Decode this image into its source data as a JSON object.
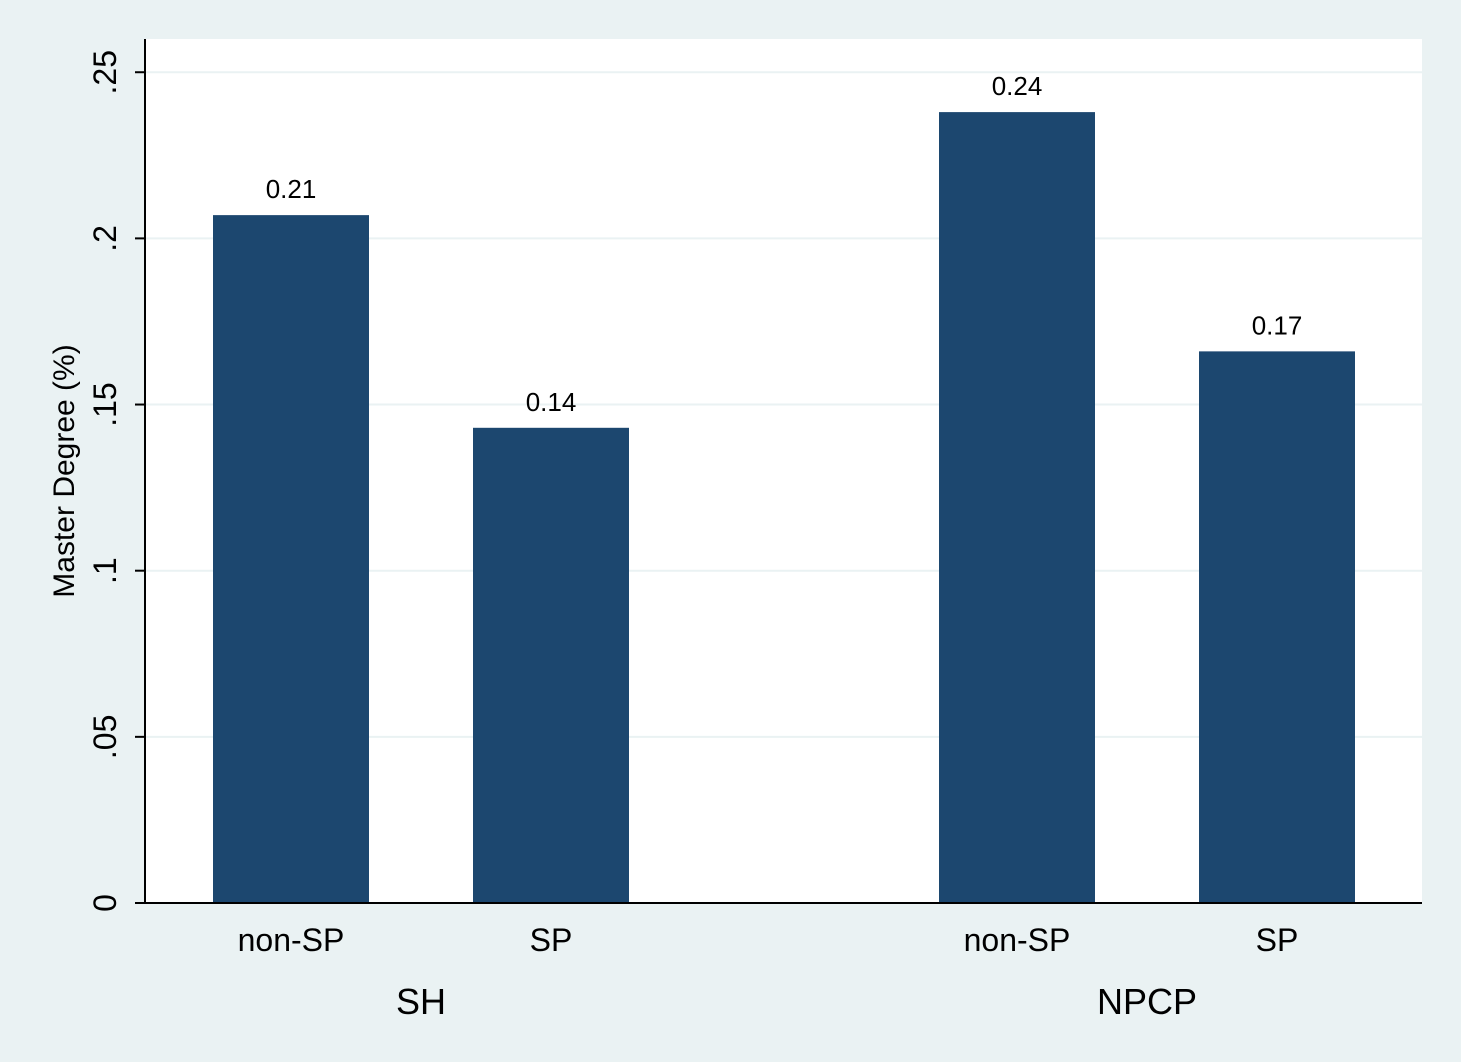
{
  "chart_data": {
    "type": "bar",
    "ylabel": "Master Degree (%)",
    "ylim": [
      0,
      0.26
    ],
    "yticks": [
      {
        "value": 0,
        "label": "0"
      },
      {
        "value": 0.05,
        "label": ".05"
      },
      {
        "value": 0.1,
        "label": ".1"
      },
      {
        "value": 0.15,
        "label": ".15"
      },
      {
        "value": 0.2,
        "label": ".2"
      },
      {
        "value": 0.25,
        "label": ".25"
      }
    ],
    "grid": true,
    "bar_color": "#1c476f",
    "groups": [
      {
        "name": "SH",
        "bars": [
          {
            "category": "non-SP",
            "value": 0.207,
            "label": "0.21"
          },
          {
            "category": "SP",
            "value": 0.143,
            "label": "0.14"
          }
        ]
      },
      {
        "name": "NPCP",
        "bars": [
          {
            "category": "non-SP",
            "value": 0.238,
            "label": "0.24"
          },
          {
            "category": "SP",
            "value": 0.166,
            "label": "0.17"
          }
        ]
      }
    ]
  }
}
